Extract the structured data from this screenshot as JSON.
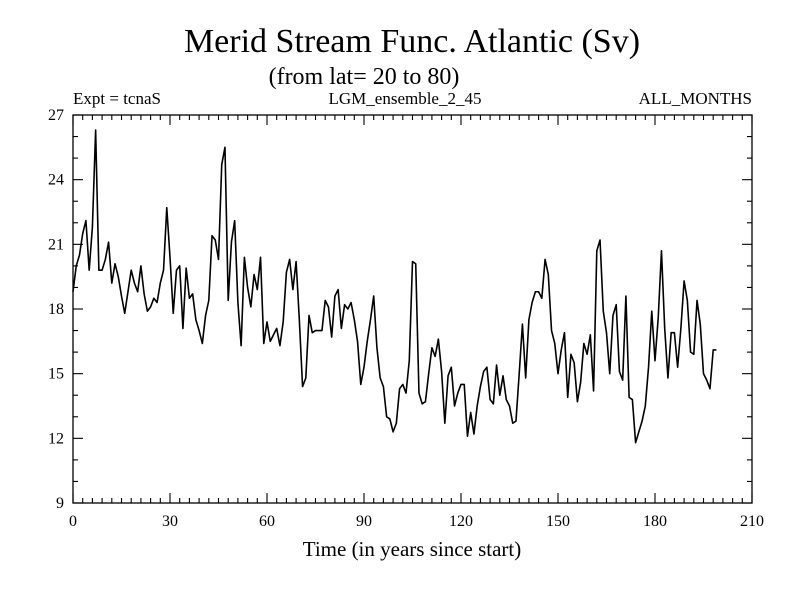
{
  "chart_data": {
    "type": "line",
    "title": "Merid Stream Func. Atlantic (Sv)",
    "subtitle": "(from lat= 20 to 80)",
    "header_left": "Expt = tcnaS",
    "header_center": "LGM_ensemble_2_45",
    "header_right": "ALL_MONTHS",
    "xlabel": "Time (in years since start)",
    "ylabel": "",
    "xlim": [
      0,
      210
    ],
    "ylim": [
      9,
      27
    ],
    "xticks": [
      0,
      30,
      60,
      90,
      120,
      150,
      180,
      210
    ],
    "yticks": [
      9,
      12,
      15,
      18,
      21,
      24,
      27
    ],
    "xminor": 3,
    "yminor": 1,
    "grid": false,
    "line_color": "#000000",
    "series": [
      {
        "name": "Merid Stream Func.",
        "x": [
          0,
          1,
          2,
          3,
          4,
          5,
          6,
          7,
          8,
          9,
          10,
          11,
          12,
          13,
          14,
          15,
          16,
          17,
          18,
          19,
          20,
          21,
          22,
          23,
          24,
          25,
          26,
          27,
          28,
          29,
          30,
          31,
          32,
          33,
          34,
          35,
          36,
          37,
          38,
          39,
          40,
          41,
          42,
          43,
          44,
          45,
          46,
          47,
          48,
          49,
          50,
          51,
          52,
          53,
          54,
          55,
          56,
          57,
          58,
          59,
          60,
          61,
          62,
          63,
          64,
          65,
          66,
          67,
          68,
          69,
          70,
          71,
          72,
          73,
          74,
          75,
          76,
          77,
          78,
          79,
          80,
          81,
          82,
          83,
          84,
          85,
          86,
          87,
          88,
          89,
          90,
          91,
          92,
          93,
          94,
          95,
          96,
          97,
          98,
          99,
          100,
          101,
          102,
          103,
          104,
          105,
          106,
          107,
          108,
          109,
          110,
          111,
          112,
          113,
          114,
          115,
          116,
          117,
          118,
          119,
          120,
          121,
          122,
          123,
          124,
          125,
          126,
          127,
          128,
          129,
          130,
          131,
          132,
          133,
          134,
          135,
          136,
          137,
          138,
          139,
          140,
          141,
          142,
          143,
          144,
          145,
          146,
          147,
          148,
          149,
          150,
          151,
          152,
          153,
          154,
          155,
          156,
          157,
          158,
          159,
          160,
          161,
          162,
          163,
          164,
          165,
          166,
          167,
          168,
          169,
          170,
          171,
          172,
          173,
          174,
          175,
          176,
          177,
          178,
          179,
          180,
          181,
          182,
          183,
          184,
          185,
          186,
          187,
          188,
          189,
          190,
          191,
          192,
          193,
          194,
          195,
          196,
          197,
          198,
          199
        ],
        "values": [
          18.8,
          20.0,
          20.5,
          21.5,
          22.1,
          19.8,
          21.8,
          26.3,
          19.8,
          19.8,
          20.3,
          21.1,
          19.2,
          20.1,
          19.5,
          18.6,
          17.8,
          18.8,
          19.8,
          19.2,
          18.8,
          20.0,
          18.7,
          17.9,
          18.1,
          18.5,
          18.3,
          19.2,
          19.8,
          22.7,
          20.4,
          17.8,
          19.8,
          20.0,
          17.1,
          19.9,
          18.5,
          18.7,
          17.5,
          17.0,
          16.4,
          17.7,
          18.4,
          21.4,
          21.2,
          20.3,
          24.7,
          25.5,
          18.4,
          21.1,
          22.1,
          18.3,
          16.3,
          20.4,
          19.0,
          18.1,
          19.6,
          18.9,
          20.4,
          16.4,
          17.4,
          16.5,
          16.8,
          17.1,
          16.3,
          17.4,
          19.7,
          20.3,
          18.9,
          20.2,
          17.5,
          14.4,
          14.8,
          17.7,
          16.9,
          17.0,
          17.0,
          17.0,
          18.4,
          18.1,
          16.7,
          18.6,
          18.9,
          17.1,
          18.2,
          18.0,
          18.3,
          17.5,
          16.5,
          14.5,
          15.3,
          16.5,
          17.5,
          18.6,
          16.2,
          14.8,
          14.4,
          13.0,
          12.9,
          12.3,
          12.7,
          14.3,
          14.5,
          14.1,
          15.6,
          20.2,
          20.1,
          14.1,
          13.6,
          13.7,
          15.0,
          16.2,
          15.8,
          16.6,
          15.1,
          12.7,
          14.9,
          15.3,
          13.5,
          14.1,
          14.5,
          14.5,
          12.1,
          13.2,
          12.2,
          13.5,
          14.4,
          15.1,
          15.3,
          13.8,
          13.6,
          15.4,
          14.0,
          14.9,
          13.8,
          13.5,
          12.7,
          12.8,
          15.0,
          17.3,
          14.8,
          17.5,
          18.3,
          18.8,
          18.8,
          18.5,
          20.3,
          19.6,
          17.0,
          16.4,
          15.0,
          16.1,
          16.9,
          13.9,
          15.9,
          15.5,
          13.7,
          14.6,
          16.4,
          15.9,
          16.8,
          14.2,
          20.7,
          21.2,
          17.9,
          16.9,
          15.0,
          17.7,
          18.2,
          15.1,
          14.7,
          18.6,
          13.9,
          13.8,
          11.8,
          12.3,
          12.8,
          13.5,
          15.3,
          17.9,
          15.6,
          17.6,
          20.7,
          17.1,
          14.8,
          16.9,
          16.9,
          15.3,
          17.1,
          19.3,
          18.4,
          16.0,
          15.9,
          18.4,
          17.3,
          15.0,
          14.7,
          14.3,
          16.1,
          16.1
        ]
      }
    ]
  }
}
